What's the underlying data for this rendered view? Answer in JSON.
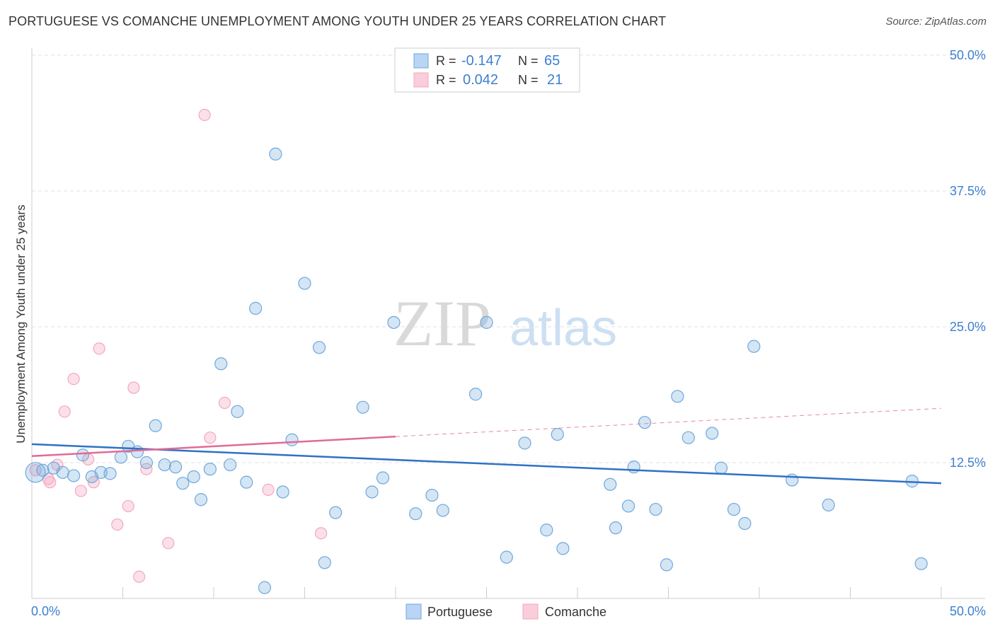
{
  "title": "PORTUGUESE VS COMANCHE UNEMPLOYMENT AMONG YOUTH UNDER 25 YEARS CORRELATION CHART",
  "source": "Source: ZipAtlas.com",
  "watermark": {
    "zip": "ZIP",
    "atlas": "atlas"
  },
  "chart_data": {
    "type": "scatter",
    "title": "PORTUGUESE VS COMANCHE UNEMPLOYMENT AMONG YOUTH UNDER 25 YEARS CORRELATION CHART",
    "xlabel": "",
    "ylabel": "Unemployment Among Youth under 25 years",
    "xlim": [
      0,
      50
    ],
    "ylim": [
      0,
      50
    ],
    "x_tick_labels": [
      "0.0%",
      "50.0%"
    ],
    "y_ticks": [
      12.5,
      25.0,
      37.5,
      50.0
    ],
    "y_tick_labels": [
      "12.5%",
      "25.0%",
      "37.5%",
      "50.0%"
    ],
    "grid": true,
    "legend_position": "top-center",
    "colors": {
      "portuguese": "#6fa8dc",
      "comanche": "#f4a7bf",
      "blue_line": "#2f72c4",
      "pink_line": "#e06b96",
      "tick_text": "#3d7fd0"
    },
    "stats": [
      {
        "r_label": "R =",
        "r": "-0.147",
        "n_label": "N =",
        "n": "65"
      },
      {
        "r_label": "R =",
        "r": "0.042",
        "n_label": "N =",
        "n": "21"
      }
    ],
    "series": [
      {
        "name": "Portuguese",
        "trend": {
          "x": [
            0,
            50
          ],
          "y": [
            14.2,
            10.6
          ]
        },
        "points": [
          [
            0.2,
            11.6
          ],
          [
            0.6,
            11.8
          ],
          [
            1.2,
            12.0
          ],
          [
            1.7,
            11.6
          ],
          [
            2.3,
            11.3
          ],
          [
            2.8,
            13.2
          ],
          [
            3.3,
            11.2
          ],
          [
            3.8,
            11.6
          ],
          [
            4.3,
            11.5
          ],
          [
            4.9,
            13.0
          ],
          [
            5.3,
            14.0
          ],
          [
            5.8,
            13.5
          ],
          [
            6.3,
            12.5
          ],
          [
            6.8,
            15.9
          ],
          [
            7.3,
            12.3
          ],
          [
            7.9,
            12.1
          ],
          [
            8.3,
            10.6
          ],
          [
            8.9,
            11.2
          ],
          [
            9.3,
            9.1
          ],
          [
            9.8,
            11.9
          ],
          [
            10.4,
            21.6
          ],
          [
            10.9,
            12.3
          ],
          [
            11.3,
            17.2
          ],
          [
            11.8,
            10.7
          ],
          [
            12.3,
            26.7
          ],
          [
            12.8,
            1.0
          ],
          [
            13.4,
            40.9
          ],
          [
            13.8,
            9.8
          ],
          [
            14.3,
            14.6
          ],
          [
            15.0,
            29.0
          ],
          [
            15.8,
            23.1
          ],
          [
            16.1,
            3.3
          ],
          [
            16.7,
            7.9
          ],
          [
            18.2,
            17.6
          ],
          [
            18.7,
            9.8
          ],
          [
            19.3,
            11.1
          ],
          [
            19.9,
            25.4
          ],
          [
            21.1,
            7.8
          ],
          [
            22.0,
            9.5
          ],
          [
            22.6,
            8.1
          ],
          [
            24.4,
            18.8
          ],
          [
            25.0,
            25.4
          ],
          [
            26.1,
            3.8
          ],
          [
            27.1,
            14.3
          ],
          [
            28.3,
            6.3
          ],
          [
            28.9,
            15.1
          ],
          [
            29.2,
            4.6
          ],
          [
            31.8,
            10.5
          ],
          [
            32.1,
            6.5
          ],
          [
            32.8,
            8.5
          ],
          [
            33.1,
            12.1
          ],
          [
            33.7,
            16.2
          ],
          [
            34.3,
            8.2
          ],
          [
            34.9,
            3.1
          ],
          [
            35.5,
            18.6
          ],
          [
            36.1,
            14.8
          ],
          [
            37.4,
            15.2
          ],
          [
            37.9,
            12.0
          ],
          [
            38.6,
            8.2
          ],
          [
            39.2,
            6.9
          ],
          [
            39.7,
            23.2
          ],
          [
            41.8,
            10.9
          ],
          [
            43.8,
            8.6
          ],
          [
            48.4,
            10.8
          ],
          [
            48.9,
            3.2
          ]
        ]
      },
      {
        "name": "Comanche",
        "trend": {
          "x": [
            0,
            20
          ],
          "y": [
            13.1,
            14.9
          ]
        },
        "trend_dashed": {
          "x": [
            20,
            50
          ],
          "y": [
            14.9,
            17.5
          ]
        },
        "points": [
          [
            0.2,
            11.8
          ],
          [
            0.9,
            11.0
          ],
          [
            1.0,
            10.7
          ],
          [
            1.4,
            12.3
          ],
          [
            1.8,
            17.2
          ],
          [
            2.3,
            20.2
          ],
          [
            2.7,
            9.9
          ],
          [
            3.1,
            12.8
          ],
          [
            3.4,
            10.7
          ],
          [
            3.7,
            23.0
          ],
          [
            4.7,
            6.8
          ],
          [
            5.3,
            8.5
          ],
          [
            5.6,
            19.4
          ],
          [
            5.9,
            2.0
          ],
          [
            6.3,
            11.9
          ],
          [
            7.5,
            5.1
          ],
          [
            9.5,
            44.5
          ],
          [
            9.8,
            14.8
          ],
          [
            10.6,
            18.0
          ],
          [
            13.0,
            10.0
          ],
          [
            15.9,
            6.0
          ]
        ]
      }
    ]
  },
  "legend": {
    "portuguese": "Portuguese",
    "comanche": "Comanche"
  }
}
